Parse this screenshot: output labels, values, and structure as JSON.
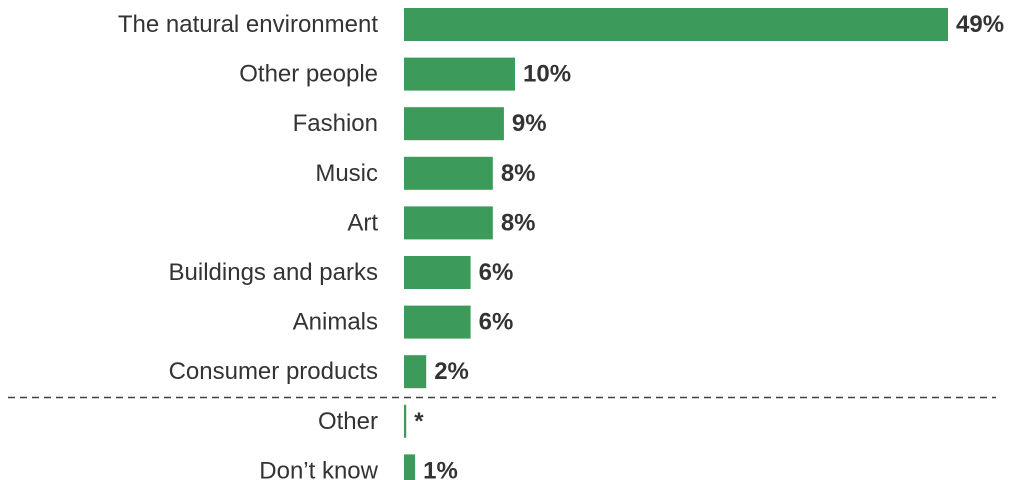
{
  "chart_data": {
    "type": "bar",
    "orientation": "horizontal",
    "categories": [
      "The natural environment",
      "Other people",
      "Fashion",
      "Music",
      "Art",
      "Buildings and parks",
      "Animals",
      "Consumer products",
      "Other",
      "Don’t know"
    ],
    "values": [
      49,
      10,
      9,
      8,
      8,
      6,
      6,
      2,
      0.2,
      1
    ],
    "value_labels": [
      "49%",
      "10%",
      "9%",
      "8%",
      "8%",
      "6%",
      "6%",
      "2%",
      "*",
      "1%"
    ],
    "divider_after_index": 7,
    "xlim": [
      0,
      49
    ],
    "bar_color": "#3c9a5a",
    "text_color": "#333333",
    "grid": false,
    "legend": "none"
  }
}
